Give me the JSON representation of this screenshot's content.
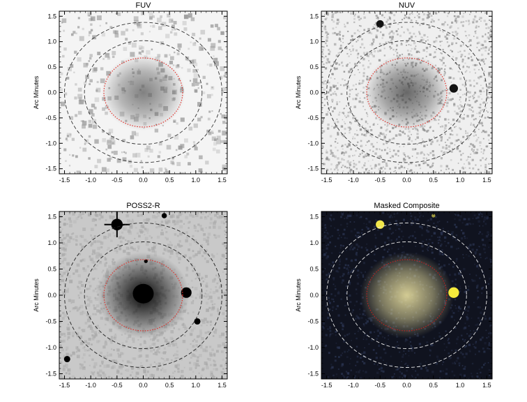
{
  "figure": {
    "panels": [
      {
        "title": "FUV",
        "ylabel": "Arc Minutes",
        "x_ticks": [
          "-1.5",
          "-1.0",
          "-0.5",
          "0.0",
          "0.5",
          "1.0",
          "1.5"
        ],
        "y_ticks": [
          "-1.5",
          "-1.0",
          "-0.5",
          "0.0",
          "0.5",
          "1.0",
          "1.5"
        ],
        "image_style": "sparse grey noise, diffuse faint galaxy at center",
        "background": "#f4f4f4",
        "noise_color": "#9a9a9a",
        "galaxy_color": "#5a5a5a",
        "inner_ellipse_color": "#e0302a",
        "outer_ellipse_color": "#333333",
        "point_sources": []
      },
      {
        "title": "NUV",
        "ylabel": "Arc Minutes",
        "x_ticks": [
          "-1.5",
          "-1.0",
          "-0.5",
          "0.0",
          "0.5",
          "1.0",
          "1.5"
        ],
        "y_ticks": [
          "-1.5",
          "-1.0",
          "-0.5",
          "0.0",
          "0.5",
          "1.0",
          "1.5"
        ],
        "image_style": "fine grey pixel noise, compact galaxy at center",
        "background": "#efefef",
        "noise_color": "#8c8c8c",
        "galaxy_color": "#3a3a3a",
        "inner_ellipse_color": "#e0302a",
        "outer_ellipse_color": "#333333",
        "point_sources": [
          {
            "x": -0.5,
            "y": 1.35,
            "r": 0.07
          },
          {
            "x": 0.88,
            "y": 0.08,
            "r": 0.08
          }
        ]
      },
      {
        "title": "POSS2-R",
        "ylabel": "Arc Minutes",
        "x_ticks": [
          "-1.5",
          "-1.0",
          "-0.5",
          "0.0",
          "0.5",
          "1.0",
          "1.5"
        ],
        "y_ticks": [
          "-1.5",
          "-1.0",
          "-0.5",
          "0.0",
          "0.5",
          "1.0",
          "1.5"
        ],
        "image_style": "medium grey mottled background, bright galaxy core",
        "background": "#c9c9c9",
        "noise_color": "#aaaaaa",
        "galaxy_color": "#050505",
        "inner_ellipse_color": "#e0302a",
        "outer_ellipse_color": "#222222",
        "point_sources": [
          {
            "x": -0.5,
            "y": 1.35,
            "r": 0.11
          },
          {
            "x": 0.4,
            "y": 1.52,
            "r": 0.05
          },
          {
            "x": 0.82,
            "y": 0.05,
            "r": 0.1
          },
          {
            "x": 1.03,
            "y": -0.5,
            "r": 0.06
          },
          {
            "x": -1.45,
            "y": -1.22,
            "r": 0.06
          },
          {
            "x": 0.05,
            "y": 0.65,
            "r": 0.035
          }
        ]
      },
      {
        "title": "Masked Composite",
        "ylabel": "Arc Minutes",
        "x_ticks": [
          "-1.5",
          "-1.0",
          "-0.5",
          "0.0",
          "0.5",
          "1.0",
          "1.5"
        ],
        "y_ticks": [
          "-1.5",
          "-1.0",
          "-0.5",
          "0.0",
          "0.5",
          "1.0",
          "1.5"
        ],
        "image_style": "dark blue-black colour composite, yellowish galaxy",
        "background": "#10131f",
        "noise_color": "#2b3552",
        "galaxy_color": "#e8dfa0",
        "inner_ellipse_color": "#c02020",
        "outer_ellipse_color": "#e8e8e8",
        "point_sources": [
          {
            "x": -0.5,
            "y": 1.35,
            "r": 0.08,
            "color": "#f1e64a"
          },
          {
            "x": 0.88,
            "y": 0.05,
            "r": 0.1,
            "color": "#f4ea3c"
          },
          {
            "x": 0.5,
            "y": 1.52,
            "r": 0.035,
            "color": "#a09a40"
          }
        ]
      }
    ]
  }
}
